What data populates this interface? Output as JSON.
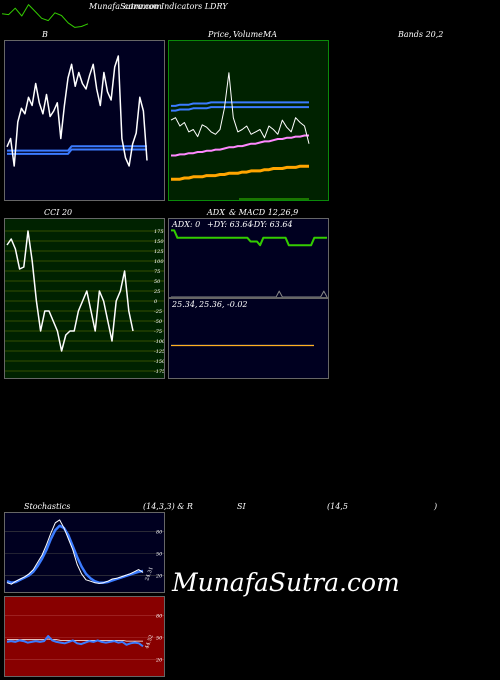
{
  "header": {
    "site": "MunafaSutra.com",
    "overlap": "common Indicators LDRY"
  },
  "labels": {
    "b": "B",
    "price": "Price,",
    "volume": "Volume",
    "ma": "MA",
    "bands": "Bands 20,2",
    "cci": "CCI 20",
    "adx": "ADX",
    "macd": "& MACD 12,26,9",
    "stoch": "Stochastics",
    "stoch_params": "(14,3,3) & R",
    "si": "SI",
    "rsi_params": "(14,5",
    "rsi_close": ")"
  },
  "watermark": "MunafaSutra.com",
  "colors": {
    "bg": "#000000",
    "navy": "#000020",
    "green_panel": "#002200",
    "olive": "#002200",
    "red_panel": "#880000",
    "blue": "#3b7bff",
    "orange": "#ffa500",
    "pink": "#ff88ff",
    "lime": "#33cc00",
    "white": "#ffffff"
  },
  "chart_data": [
    {
      "type": "line",
      "name": "top-strip",
      "values": [
        40,
        38,
        52,
        35,
        60,
        45,
        30,
        25,
        42,
        36,
        20,
        10,
        12,
        18
      ]
    },
    {
      "type": "line",
      "name": "bollinger",
      "price": [
        95,
        110,
        60,
        140,
        165,
        155,
        185,
        170,
        210,
        175,
        155,
        190,
        150,
        160,
        175,
        110,
        170,
        220,
        245,
        205,
        230,
        210,
        200,
        225,
        245,
        200,
        170,
        230,
        195,
        180,
        240,
        260,
        110,
        75,
        60,
        100,
        120,
        185,
        160,
        70
      ],
      "band_upper": [
        88,
        88,
        88,
        88,
        88,
        88,
        88,
        88,
        88,
        88,
        88,
        88,
        88,
        88,
        88,
        88,
        88,
        88,
        96,
        96,
        96,
        96,
        96,
        96,
        96,
        96,
        96,
        96,
        96,
        96,
        96,
        96,
        96,
        96,
        96,
        96,
        96,
        96,
        96,
        96
      ],
      "band_lower": [
        82,
        82,
        82,
        82,
        82,
        82,
        82,
        82,
        82,
        82,
        82,
        82,
        82,
        82,
        82,
        82,
        82,
        82,
        90,
        90,
        90,
        90,
        90,
        90,
        90,
        90,
        90,
        90,
        90,
        90,
        90,
        90,
        90,
        90,
        90,
        90,
        90,
        90,
        90,
        90
      ]
    },
    {
      "type": "line",
      "name": "price-ma",
      "price": [
        60,
        62,
        55,
        58,
        50,
        52,
        46,
        56,
        54,
        50,
        48,
        52,
        70,
        100,
        62,
        50,
        52,
        55,
        48,
        50,
        52,
        45,
        55,
        52,
        48,
        60,
        54,
        50,
        62,
        58,
        55,
        40
      ],
      "ma_short": [
        30,
        30,
        31,
        31,
        32,
        32,
        33,
        33,
        34,
        34,
        35,
        35,
        36,
        37,
        37,
        38,
        38,
        39,
        40,
        40,
        41,
        42,
        42,
        43,
        44,
        44,
        45,
        45,
        46,
        46,
        47,
        47
      ],
      "ma_long": [
        10,
        10,
        10,
        11,
        11,
        12,
        12,
        12,
        13,
        13,
        13,
        14,
        14,
        15,
        15,
        15,
        16,
        16,
        17,
        17,
        17,
        18,
        18,
        19,
        19,
        19,
        20,
        20,
        20,
        21,
        21,
        21
      ],
      "band_upper": [
        72,
        72,
        73,
        73,
        73,
        74,
        74,
        74,
        74,
        75,
        75,
        75,
        75,
        75,
        75,
        75,
        75,
        75,
        75,
        75,
        75,
        75,
        75,
        75,
        75,
        75,
        75,
        75,
        75,
        75,
        75,
        75
      ],
      "band_lower": [
        68,
        68,
        69,
        69,
        69,
        70,
        70,
        70,
        70,
        71,
        71,
        71,
        71,
        71,
        71,
        71,
        71,
        71,
        71,
        71,
        71,
        71,
        71,
        71,
        71,
        71,
        71,
        71,
        71,
        71,
        71,
        71
      ]
    },
    {
      "type": "line",
      "name": "cci",
      "ticks": [
        175,
        150,
        125,
        100,
        75,
        50,
        25,
        0,
        -25,
        -50,
        -75,
        -100,
        -125,
        -150,
        -175
      ],
      "values": [
        140,
        155,
        130,
        80,
        85,
        175,
        100,
        0,
        -75,
        -25,
        -25,
        -50,
        -75,
        -125,
        -85,
        -75,
        -75,
        -25,
        0,
        25,
        -25,
        -75,
        25,
        0,
        -50,
        -100,
        0,
        25,
        75,
        -25,
        -75
      ]
    },
    {
      "type": "line",
      "name": "adx",
      "adx_label": "ADX: 0",
      "plus_di_label": "+DY: 63.64",
      "minus_di_label": "-DY: 63.64",
      "line_a": [
        90,
        90,
        80,
        80,
        80,
        80,
        80,
        80,
        80,
        80,
        80,
        80,
        80,
        80,
        80,
        80,
        80,
        80,
        80,
        80,
        80,
        80,
        80,
        80,
        80,
        75,
        75,
        75,
        70,
        80,
        80,
        80,
        80,
        80,
        80,
        80,
        80,
        70,
        70,
        70,
        70,
        70,
        70,
        70,
        70,
        80,
        80,
        80,
        80,
        80
      ],
      "triangles": [
        0,
        0,
        0,
        0,
        0,
        0,
        0,
        0,
        0,
        0,
        0,
        0,
        0,
        0,
        0,
        0,
        0,
        0,
        0,
        0,
        0,
        0,
        0,
        0,
        0,
        0,
        0,
        0,
        0,
        0,
        0,
        0,
        0,
        0,
        8,
        0,
        0,
        0,
        0,
        0,
        0,
        0,
        0,
        0,
        0,
        0,
        0,
        0,
        8,
        0
      ]
    },
    {
      "type": "line",
      "name": "macd",
      "macd_label": "25.34,",
      "signal_label": "25.36,",
      "hist_label": "-0.02",
      "macd": [
        25.34,
        25.34,
        25.34,
        25.34
      ],
      "signal": [
        25.36,
        25.36,
        25.36,
        25.36
      ]
    },
    {
      "type": "line",
      "name": "stochastics",
      "ticks": [
        80,
        50,
        20
      ],
      "tick_right": "24.31",
      "k": [
        10,
        8,
        12,
        15,
        18,
        22,
        28,
        38,
        48,
        62,
        78,
        92,
        96,
        85,
        70,
        55,
        35,
        22,
        14,
        12,
        10,
        9,
        10,
        12,
        15,
        16,
        18,
        20,
        22,
        25,
        28,
        24
      ],
      "d": [
        12,
        10,
        11,
        14,
        17,
        20,
        25,
        33,
        43,
        55,
        70,
        82,
        88,
        85,
        75,
        60,
        45,
        32,
        22,
        16,
        12,
        10,
        10,
        11,
        13,
        15,
        17,
        19,
        21,
        23,
        25,
        26
      ]
    },
    {
      "type": "line",
      "name": "rsi",
      "ticks": [
        80,
        50,
        20
      ],
      "tick_right": "44.52",
      "rsi": [
        44,
        45,
        44,
        46,
        45,
        43,
        44,
        45,
        44,
        45,
        52,
        46,
        44,
        43,
        42,
        44,
        46,
        42,
        41,
        43,
        45,
        44,
        46,
        44,
        43,
        44,
        45,
        43,
        44,
        40,
        42,
        43,
        42,
        38
      ],
      "mrsi": [
        47,
        47,
        47,
        47,
        47,
        47,
        47,
        47,
        47,
        47,
        48,
        47,
        47,
        46,
        46,
        46,
        46,
        46,
        46,
        46,
        46,
        46,
        46,
        46,
        46,
        46,
        46,
        46,
        46,
        45,
        45,
        45,
        45,
        45
      ]
    }
  ]
}
